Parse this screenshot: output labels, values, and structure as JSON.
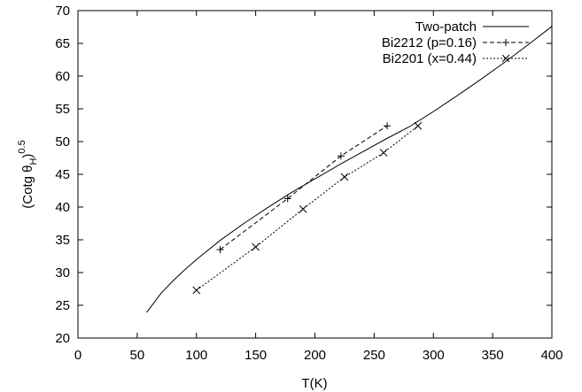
{
  "chart_data": {
    "type": "line",
    "title": "",
    "xlabel": "T(K)",
    "ylabel_main": "(Cotg θ",
    "ylabel_sub": "H",
    "ylabel_close": ")",
    "ylabel_sup": "0.5",
    "xlim": [
      0,
      400
    ],
    "ylim": [
      20,
      70
    ],
    "xticks": [
      0,
      50,
      100,
      150,
      200,
      250,
      300,
      350,
      400
    ],
    "yticks": [
      20,
      25,
      30,
      35,
      40,
      45,
      50,
      55,
      60,
      65,
      70
    ],
    "grid": false,
    "legend_position": "top-right",
    "series": [
      {
        "name": "Two-patch",
        "style": "solid",
        "marker": "none",
        "x": [
          58,
          70,
          80,
          90,
          100,
          120,
          140,
          160,
          180,
          200,
          220,
          240,
          260,
          280,
          300,
          320,
          340,
          360,
          380,
          400
        ],
        "y": [
          23.9,
          26.8,
          28.7,
          30.4,
          32.0,
          34.9,
          37.5,
          39.9,
          42.2,
          44.3,
          46.4,
          48.4,
          50.4,
          52.3,
          54.6,
          57.0,
          59.5,
          62.1,
          64.8,
          67.6
        ]
      },
      {
        "name": "Bi2212 (p=0.16)",
        "style": "dashed",
        "marker": "plus",
        "x": [
          120,
          177,
          222,
          261
        ],
        "y": [
          33.5,
          41.3,
          47.8,
          52.4
        ]
      },
      {
        "name": "Bi2201 (x=0.44)",
        "style": "dotted",
        "marker": "cross",
        "x": [
          100,
          150,
          190,
          225,
          258,
          287
        ],
        "y": [
          27.3,
          33.9,
          39.7,
          44.6,
          48.3,
          52.4
        ]
      }
    ]
  }
}
